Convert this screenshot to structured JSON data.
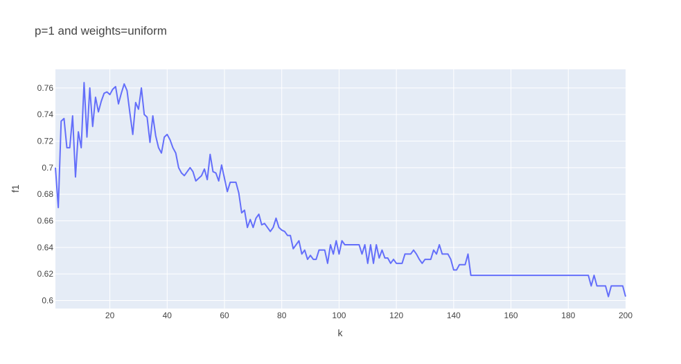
{
  "chart_data": {
    "type": "line",
    "title": "p=1 and weights=uniform",
    "xlabel": "k",
    "ylabel": "f1",
    "xlim": [
      1,
      200
    ],
    "ylim": [
      0.594,
      0.774
    ],
    "xticks": [
      20,
      40,
      60,
      80,
      100,
      120,
      140,
      160,
      180,
      200
    ],
    "yticks": [
      0.6,
      0.62,
      0.64,
      0.66,
      0.68,
      0.7,
      0.72,
      0.74,
      0.76
    ],
    "ytick_labels": [
      "0.6",
      "0.62",
      "0.64",
      "0.66",
      "0.68",
      "0.7",
      "0.72",
      "0.74",
      "0.76"
    ],
    "grid": true,
    "colors": {
      "line": "#636efa",
      "plot_bg": "#e5ecf6",
      "grid": "#ffffff"
    },
    "series": [
      {
        "x": [
          1,
          2,
          3,
          4,
          5,
          6,
          7,
          8,
          9,
          10,
          11,
          12,
          13,
          14,
          15,
          16,
          17,
          18,
          19,
          20,
          21,
          22,
          23,
          24,
          25,
          26,
          27,
          28,
          29,
          30,
          31,
          32,
          33,
          34,
          35,
          36,
          37,
          38,
          39,
          40,
          41,
          42,
          43,
          44,
          45,
          46,
          47,
          48,
          49,
          50,
          51,
          52,
          53,
          54,
          55,
          56,
          57,
          58,
          59,
          60,
          61,
          62,
          63,
          64,
          65,
          66,
          67,
          68,
          69,
          70,
          71,
          72,
          73,
          74,
          75,
          76,
          77,
          78,
          79,
          80,
          81,
          82,
          83,
          84,
          85,
          86,
          87,
          88,
          89,
          90,
          91,
          92,
          93,
          94,
          95,
          96,
          97,
          98,
          99,
          100,
          101,
          102,
          103,
          104,
          105,
          106,
          107,
          108,
          109,
          110,
          111,
          112,
          113,
          114,
          115,
          116,
          117,
          118,
          119,
          120,
          121,
          122,
          123,
          124,
          125,
          126,
          127,
          128,
          129,
          130,
          131,
          132,
          133,
          134,
          135,
          136,
          137,
          138,
          139,
          140,
          141,
          142,
          143,
          144,
          145,
          146,
          187,
          188,
          189,
          190,
          191,
          192,
          193,
          194,
          195,
          196,
          197,
          198,
          199,
          200
        ],
        "y": [
          0.7,
          0.67,
          0.735,
          0.737,
          0.715,
          0.715,
          0.739,
          0.693,
          0.727,
          0.715,
          0.764,
          0.723,
          0.76,
          0.731,
          0.753,
          0.742,
          0.75,
          0.756,
          0.757,
          0.755,
          0.759,
          0.761,
          0.748,
          0.756,
          0.763,
          0.758,
          0.741,
          0.725,
          0.749,
          0.744,
          0.76,
          0.74,
          0.738,
          0.719,
          0.739,
          0.724,
          0.715,
          0.711,
          0.723,
          0.725,
          0.721,
          0.715,
          0.711,
          0.7,
          0.696,
          0.694,
          0.697,
          0.7,
          0.697,
          0.69,
          0.692,
          0.694,
          0.699,
          0.691,
          0.71,
          0.697,
          0.696,
          0.69,
          0.702,
          0.692,
          0.682,
          0.689,
          0.689,
          0.689,
          0.681,
          0.666,
          0.668,
          0.655,
          0.661,
          0.655,
          0.662,
          0.665,
          0.657,
          0.658,
          0.655,
          0.652,
          0.655,
          0.662,
          0.655,
          0.653,
          0.652,
          0.649,
          0.649,
          0.639,
          0.642,
          0.645,
          0.635,
          0.638,
          0.631,
          0.634,
          0.631,
          0.631,
          0.638,
          0.638,
          0.638,
          0.628,
          0.642,
          0.635,
          0.645,
          0.635,
          0.645,
          0.642,
          0.642,
          0.642,
          0.642,
          0.642,
          0.642,
          0.635,
          0.642,
          0.628,
          0.642,
          0.628,
          0.642,
          0.632,
          0.638,
          0.632,
          0.632,
          0.628,
          0.631,
          0.628,
          0.628,
          0.628,
          0.635,
          0.635,
          0.635,
          0.638,
          0.635,
          0.631,
          0.628,
          0.631,
          0.631,
          0.631,
          0.638,
          0.635,
          0.642,
          0.635,
          0.635,
          0.635,
          0.631,
          0.623,
          0.623,
          0.627,
          0.627,
          0.627,
          0.635,
          0.619,
          0.619,
          0.611,
          0.619,
          0.611,
          0.611,
          0.611,
          0.611,
          0.603,
          0.611,
          0.611,
          0.611,
          0.611,
          0.611,
          0.603
        ]
      }
    ]
  }
}
